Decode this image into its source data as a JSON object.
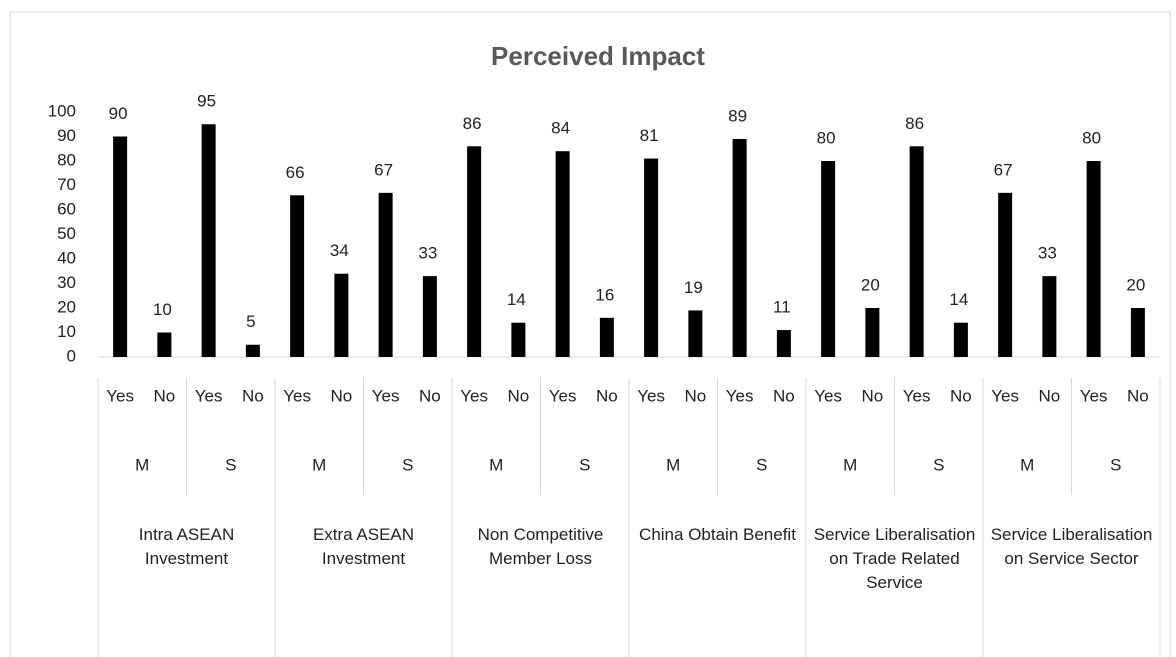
{
  "chart_data": {
    "type": "bar",
    "title": "Perceived Impact",
    "groups": [
      {
        "name": "Intra ASEAN Investment",
        "subgroups": [
          {
            "name": "M",
            "categories": [
              "Yes",
              "No"
            ]
          },
          {
            "name": "S",
            "categories": [
              "Yes",
              "No"
            ]
          }
        ]
      },
      {
        "name": "Extra ASEAN Investment",
        "subgroups": [
          {
            "name": "M",
            "categories": [
              "Yes",
              "No"
            ]
          },
          {
            "name": "S",
            "categories": [
              "Yes",
              "No"
            ]
          }
        ]
      },
      {
        "name": "Non Competitive Member Loss",
        "subgroups": [
          {
            "name": "M",
            "categories": [
              "Yes",
              "No"
            ]
          },
          {
            "name": "S",
            "categories": [
              "Yes",
              "No"
            ]
          }
        ]
      },
      {
        "name": "China Obtain Benefit",
        "subgroups": [
          {
            "name": "M",
            "categories": [
              "Yes",
              "No"
            ]
          },
          {
            "name": "S",
            "categories": [
              "Yes",
              "No"
            ]
          }
        ]
      },
      {
        "name": "Service Liberalisation on Trade Related Service",
        "subgroups": [
          {
            "name": "M",
            "categories": [
              "Yes",
              "No"
            ]
          },
          {
            "name": "S",
            "categories": [
              "Yes",
              "No"
            ]
          }
        ]
      },
      {
        "name": "Service Liberalisation on Service Sector",
        "subgroups": [
          {
            "name": "M",
            "categories": [
              "Yes",
              "No"
            ]
          },
          {
            "name": "S",
            "categories": [
              "Yes",
              "No"
            ]
          }
        ]
      }
    ],
    "values": [
      90,
      10,
      95,
      5,
      66,
      34,
      67,
      33,
      86,
      14,
      84,
      16,
      81,
      19,
      89,
      11,
      80,
      20,
      86,
      14,
      67,
      33,
      80,
      20
    ],
    "color": "#000000",
    "ylim": [
      0,
      100
    ],
    "yticks": [
      0,
      10,
      20,
      30,
      40,
      50,
      60,
      70,
      80,
      90,
      100
    ],
    "grid": false
  }
}
